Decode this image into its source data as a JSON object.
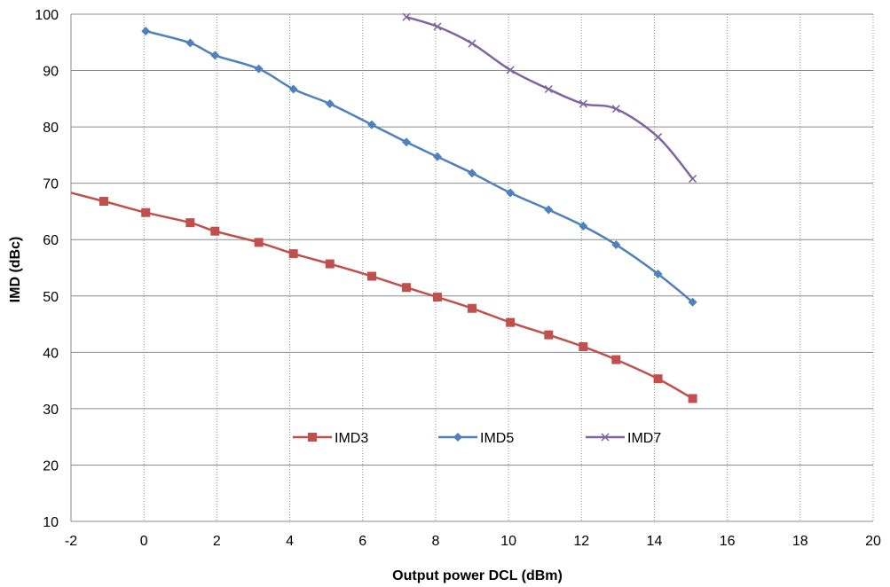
{
  "chart_data": {
    "type": "line",
    "xlabel": "Output power DCL (dBm)",
    "ylabel": "IMD (dBc)",
    "xlim": [
      -2,
      20
    ],
    "ylim": [
      10,
      100
    ],
    "x_ticks": [
      -2,
      0,
      2,
      4,
      6,
      8,
      10,
      12,
      14,
      16,
      18,
      20
    ],
    "y_ticks": [
      10,
      20,
      30,
      40,
      50,
      60,
      70,
      80,
      90,
      100
    ],
    "grid": {
      "x": "dotted",
      "y": "solid"
    },
    "legend_placement": "bottom-center",
    "series": [
      {
        "name": "IMD3",
        "color": "#C0504D",
        "marker": "square",
        "x": [
          -3.0,
          -1.1,
          0.05,
          1.27,
          1.95,
          3.15,
          4.1,
          5.1,
          6.25,
          7.2,
          8.05,
          9.0,
          10.05,
          11.1,
          12.05,
          12.95,
          14.1,
          15.05
        ],
        "y": [
          70.0,
          66.8,
          64.8,
          63.0,
          61.5,
          59.5,
          57.5,
          55.7,
          53.5,
          51.5,
          49.8,
          47.8,
          45.3,
          43.1,
          41.0,
          38.7,
          35.3,
          31.8
        ],
        "markers_from_index": 1
      },
      {
        "name": "IMD5",
        "color": "#4F81BD",
        "marker": "diamond",
        "x": [
          0.05,
          1.27,
          1.95,
          3.15,
          4.1,
          5.1,
          6.25,
          7.2,
          8.05,
          9.0,
          10.05,
          11.1,
          12.05,
          12.95,
          14.1,
          15.05
        ],
        "y": [
          97.0,
          94.9,
          92.7,
          90.3,
          86.7,
          84.1,
          80.4,
          77.3,
          74.7,
          71.8,
          68.3,
          65.3,
          62.4,
          59.1,
          53.9,
          48.9
        ],
        "markers_from_index": 0
      },
      {
        "name": "IMD7",
        "color": "#8064A2",
        "marker": "x",
        "x": [
          7.2,
          8.05,
          9.0,
          10.05,
          11.1,
          12.05,
          12.95,
          14.1,
          15.05
        ],
        "y": [
          99.5,
          97.8,
          94.8,
          90.1,
          86.7,
          84.1,
          83.2,
          78.2,
          70.8
        ],
        "markers_from_index": 0
      }
    ]
  }
}
